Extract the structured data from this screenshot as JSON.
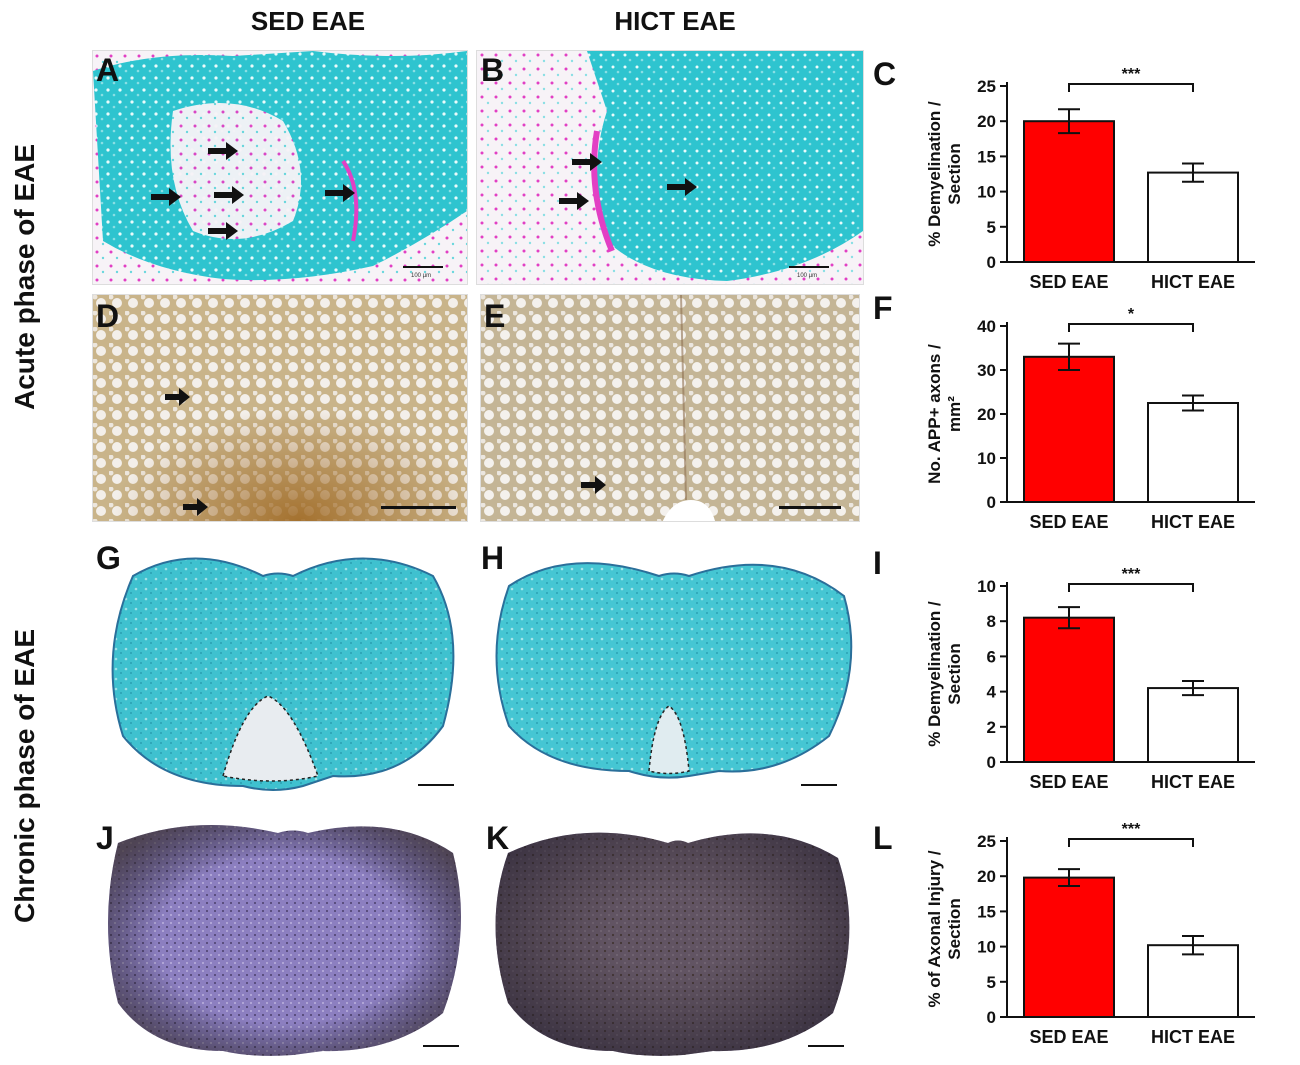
{
  "column_titles": [
    "SED EAE",
    "HICT EAE"
  ],
  "row_titles": [
    "Acute phase of EAE",
    "Chronic phase of EAE"
  ],
  "panel_labels": {
    "A": "A",
    "B": "B",
    "C": "C",
    "D": "D",
    "E": "E",
    "F": "F",
    "G": "G",
    "H": "H",
    "I": "I",
    "J": "J",
    "K": "K",
    "L": "L"
  },
  "scale_text": {
    "A": "100 µm",
    "B": "100 µm"
  },
  "colors": {
    "sed_bar": "#ff0000",
    "hict_bar": "#ffffff",
    "lfb": "#2ec4cf",
    "pink": "#e23fc4",
    "app": "#b8904f",
    "nf": "#7c6fb8"
  },
  "chart_data": [
    {
      "id": "C",
      "type": "bar",
      "categories": [
        "SED EAE",
        "HICT EAE"
      ],
      "values": [
        20,
        12.7
      ],
      "errors": [
        1.7,
        1.3
      ],
      "ylabel": "% Demyelination / Section",
      "ylim": [
        0,
        25
      ],
      "yticks": [
        0,
        5,
        10,
        15,
        20,
        25
      ],
      "significance": "***"
    },
    {
      "id": "F",
      "type": "bar",
      "categories": [
        "SED EAE",
        "HICT EAE"
      ],
      "values": [
        33,
        22.5
      ],
      "errors": [
        3,
        1.7
      ],
      "ylabel": "No. APP+ axons / mm²",
      "ylim": [
        0,
        40
      ],
      "yticks": [
        0,
        10,
        20,
        30,
        40
      ],
      "significance": "*"
    },
    {
      "id": "I",
      "type": "bar",
      "categories": [
        "SED EAE",
        "HICT EAE"
      ],
      "values": [
        8.2,
        4.2
      ],
      "errors": [
        0.6,
        0.4
      ],
      "ylabel": "% Demyelination / Section",
      "ylim": [
        0,
        10
      ],
      "yticks": [
        0,
        2,
        4,
        6,
        8,
        10
      ],
      "significance": "***"
    },
    {
      "id": "L",
      "type": "bar",
      "categories": [
        "SED EAE",
        "HICT EAE"
      ],
      "values": [
        19.8,
        10.2
      ],
      "errors": [
        1.2,
        1.3
      ],
      "ylabel": "% of Axonal Injury / Section",
      "ylim": [
        0,
        25
      ],
      "yticks": [
        0,
        5,
        10,
        15,
        20,
        25
      ],
      "significance": "***"
    }
  ]
}
